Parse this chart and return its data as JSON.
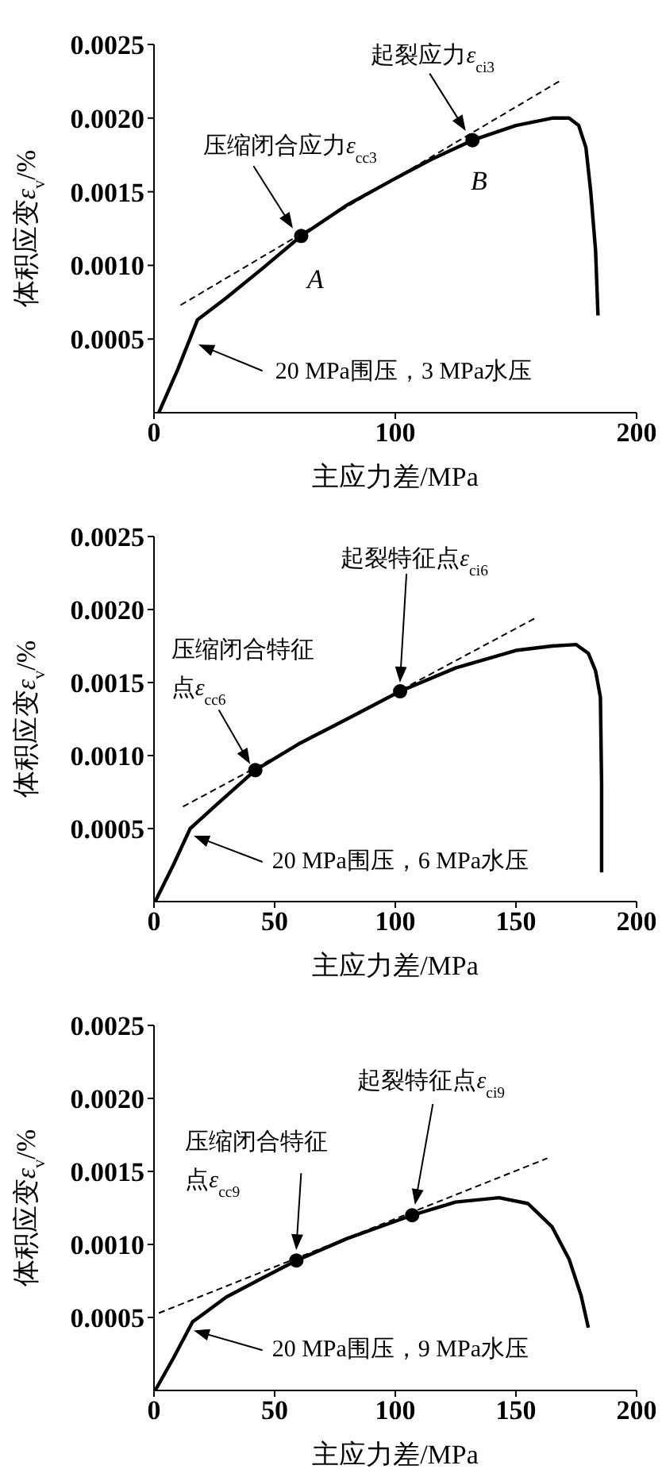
{
  "chart_data": [
    {
      "type": "line",
      "xlabel": "主应力差/MPa",
      "ylabel": "体积应变ε$_{v}$/%",
      "xlim": [
        0,
        200
      ],
      "xticks": [
        0,
        100,
        200
      ],
      "ylim": [
        0,
        0.0025
      ],
      "yticks": [
        {
          "value": 0.0005,
          "label": "0.0005"
        },
        {
          "value": 0.001,
          "label": "0.0010"
        },
        {
          "value": 0.0015,
          "label": "0.0015"
        },
        {
          "value": 0.002,
          "label": "0.0020"
        },
        {
          "value": 0.0025,
          "label": "0.0025"
        }
      ],
      "series": [
        {
          "type": "line",
          "line_style": "solid",
          "color": "#000000",
          "x": [
            2,
            10,
            18,
            30,
            45,
            61,
            80,
            100,
            115,
            132,
            150,
            165,
            172,
            176,
            179,
            181,
            183,
            184
          ],
          "values": [
            0,
            0.0003,
            0.00063,
            0.00078,
            0.00098,
            0.0012,
            0.00141,
            0.00159,
            0.00172,
            0.00185,
            0.00195,
            0.002,
            0.002,
            0.00195,
            0.0018,
            0.0015,
            0.0011,
            0.00066
          ]
        },
        {
          "type": "line",
          "line_style": "dashed",
          "color": "#000000",
          "x": [
            11,
            169
          ],
          "values": [
            0.00073,
            0.00226
          ]
        },
        {
          "type": "scatter",
          "marker": "circle",
          "color": "#000000",
          "x": [
            61,
            132
          ],
          "values": [
            0.0012,
            0.00185
          ]
        }
      ],
      "annotations": [
        {
          "text": "压缩闭合应力ε$_{cc3}$",
          "x": 61,
          "y": 0.0012
        },
        {
          "text": "起裂应力ε$_{ci3}$",
          "x": 132,
          "y": 0.00185
        },
        {
          "text": "A",
          "x": 61,
          "y": 0.0012
        },
        {
          "text": "B",
          "x": 132,
          "y": 0.00185
        },
        {
          "text": "20 MPa围压，3 MPa水压",
          "x": 18,
          "y": 0.0005
        }
      ]
    },
    {
      "type": "line",
      "xlabel": "主应力差/MPa",
      "ylabel": "体积应变ε$_{v}$/%",
      "xlim": [
        0,
        200
      ],
      "xticks": [
        0,
        50,
        100,
        150,
        200
      ],
      "ylim": [
        0,
        0.0025
      ],
      "yticks": [
        {
          "value": 0.0005,
          "label": "0.0005"
        },
        {
          "value": 0.001,
          "label": "0.0010"
        },
        {
          "value": 0.0015,
          "label": "0.0015"
        },
        {
          "value": 0.002,
          "label": "0.0020"
        },
        {
          "value": 0.0025,
          "label": "0.0025"
        }
      ],
      "series": [
        {
          "type": "line",
          "line_style": "solid",
          "color": "#000000",
          "x": [
            0.5,
            8,
            15,
            25,
            42,
            60,
            80,
            102,
            125,
            150,
            165,
            175,
            180,
            183,
            185,
            185.5,
            185.5
          ],
          "values": [
            0,
            0.00025,
            0.0005,
            0.00065,
            0.0009,
            0.00108,
            0.00125,
            0.00144,
            0.0016,
            0.00172,
            0.00175,
            0.00176,
            0.0017,
            0.00158,
            0.0014,
            0.0008,
            0.0002
          ]
        },
        {
          "type": "line",
          "line_style": "dashed",
          "color": "#000000",
          "x": [
            12,
            159
          ],
          "values": [
            0.00065,
            0.00195
          ]
        },
        {
          "type": "scatter",
          "marker": "circle",
          "color": "#000000",
          "x": [
            42,
            102
          ],
          "values": [
            0.0009,
            0.00144
          ]
        }
      ],
      "annotations": [
        {
          "text": "压缩闭合特征点ε$_{cc6}$",
          "x": 42,
          "y": 0.0009
        },
        {
          "text": "起裂特征点ε$_{ci6}$",
          "x": 102,
          "y": 0.00144
        },
        {
          "text": "20 MPa围压，6 MPa水压",
          "x": 16,
          "y": 0.0005
        }
      ]
    },
    {
      "type": "line",
      "xlabel": "主应力差/MPa",
      "ylabel": "体积应变ε$_{v}$/%",
      "xlim": [
        0,
        200
      ],
      "xticks": [
        0,
        50,
        100,
        150,
        200
      ],
      "ylim": [
        0,
        0.0025
      ],
      "yticks": [
        {
          "value": 0.0005,
          "label": "0.0005"
        },
        {
          "value": 0.001,
          "label": "0.0010"
        },
        {
          "value": 0.0015,
          "label": "0.0015"
        },
        {
          "value": 0.002,
          "label": "0.0020"
        },
        {
          "value": 0.0025,
          "label": "0.0025"
        }
      ],
      "series": [
        {
          "type": "line",
          "line_style": "solid",
          "color": "#000000",
          "x": [
            0.5,
            8,
            16,
            30,
            45,
            59,
            80,
            107,
            125,
            143,
            155,
            165,
            172,
            177,
            180
          ],
          "values": [
            0,
            0.00022,
            0.00047,
            0.00064,
            0.00077,
            0.00089,
            0.00104,
            0.0012,
            0.00129,
            0.00132,
            0.00128,
            0.00112,
            0.0009,
            0.00065,
            0.00043
          ]
        },
        {
          "type": "line",
          "line_style": "dashed",
          "color": "#000000",
          "x": [
            2,
            163
          ],
          "values": [
            0.00053,
            0.00159
          ]
        },
        {
          "type": "scatter",
          "marker": "circle",
          "color": "#000000",
          "x": [
            59,
            107
          ],
          "values": [
            0.00089,
            0.0012
          ]
        }
      ],
      "annotations": [
        {
          "text": "压缩闭合特征点ε$_{cc9}$",
          "x": 59,
          "y": 0.00089
        },
        {
          "text": "起裂特征点ε$_{ci9}$",
          "x": 107,
          "y": 0.0012
        },
        {
          "text": "20 MPa围压，9 MPa水压",
          "x": 16,
          "y": 0.00045
        }
      ]
    }
  ]
}
